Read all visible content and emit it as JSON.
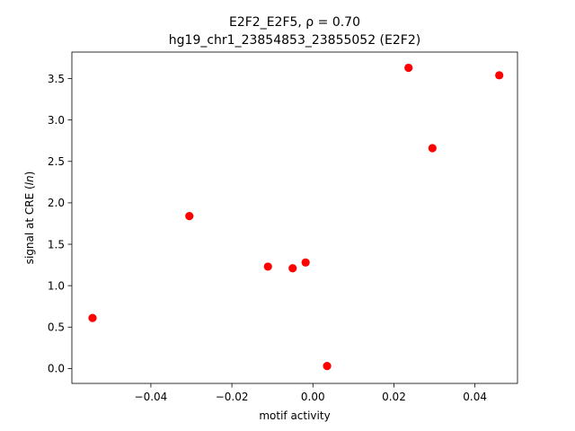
{
  "chart_data": {
    "type": "scatter",
    "title_line1": "E2F2_E2F5, ρ = 0.70",
    "title_line2": "hg19_chr1_23854853_23855052 (E2F2)",
    "xlabel": "motif activity",
    "ylabel": "signal at CRE (ln)",
    "xlim": [
      -0.0595,
      0.0505
    ],
    "ylim": [
      -0.18,
      3.82
    ],
    "xticks": [
      -0.04,
      -0.02,
      0.0,
      0.02,
      0.04
    ],
    "xtick_labels": [
      "−0.04",
      "−0.02",
      "0.00",
      "0.02",
      "0.04"
    ],
    "yticks": [
      0.0,
      0.5,
      1.0,
      1.5,
      2.0,
      2.5,
      3.0,
      3.5
    ],
    "ytick_labels": [
      "0.0",
      "0.5",
      "1.0",
      "1.5",
      "2.0",
      "2.5",
      "3.0",
      "3.5"
    ],
    "grid": false,
    "point_color": "#ff0000",
    "points": [
      {
        "x": -0.0544,
        "y": 0.61
      },
      {
        "x": -0.0305,
        "y": 1.84
      },
      {
        "x": -0.0111,
        "y": 1.23
      },
      {
        "x": -0.005,
        "y": 1.21
      },
      {
        "x": -0.0018,
        "y": 1.28
      },
      {
        "x": 0.0035,
        "y": 0.03
      },
      {
        "x": 0.0236,
        "y": 3.63
      },
      {
        "x": 0.0295,
        "y": 2.66
      },
      {
        "x": 0.046,
        "y": 3.54
      }
    ]
  }
}
